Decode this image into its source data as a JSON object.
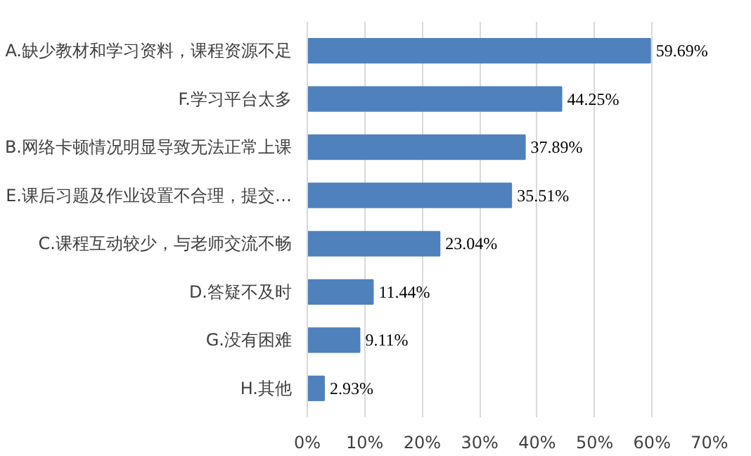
{
  "chart_data": {
    "type": "bar",
    "orientation": "horizontal",
    "categories": [
      "A.缺少教材和学习资料，课程资源不足",
      "F.学习平台太多",
      "B.网络卡顿情况明显导致无法正常上课",
      "E.课后习题及作业设置不合理，提交…",
      "C.课程互动较少，与老师交流不畅",
      "D.答疑不及时",
      "G.没有困难",
      "H.其他"
    ],
    "values": [
      59.69,
      44.25,
      37.89,
      35.51,
      23.04,
      11.44,
      9.11,
      2.93
    ],
    "color": "#4f81bd",
    "value_labels": [
      "59.69%",
      "44.25%",
      "37.89%",
      "35.51%",
      "23.04%",
      "11.44%",
      "9.11%",
      "2.93%"
    ],
    "xlim": [
      0,
      70
    ],
    "xticks": [
      {
        "value": 0,
        "label": "0%"
      },
      {
        "value": 10,
        "label": "10%"
      },
      {
        "value": 20,
        "label": "20%"
      },
      {
        "value": 30,
        "label": "30%"
      },
      {
        "value": 40,
        "label": "40%"
      },
      {
        "value": 50,
        "label": "50%"
      },
      {
        "value": 60,
        "label": "60%"
      },
      {
        "value": 70,
        "label": "70%"
      }
    ],
    "grid": "x"
  }
}
